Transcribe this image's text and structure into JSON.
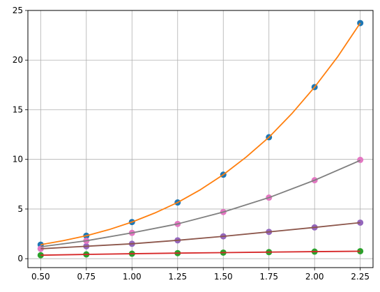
{
  "chart_data": {
    "type": "line",
    "title": "",
    "xlabel": "",
    "ylabel": "",
    "xlim": [
      0.43,
      2.32
    ],
    "ylim": [
      -0.9,
      25
    ],
    "grid": true,
    "x_ticks": [
      0.5,
      0.75,
      1.0,
      1.25,
      1.5,
      1.75,
      2.0,
      2.25
    ],
    "x_tick_labels": [
      "0.50",
      "0.75",
      "1.00",
      "1.25",
      "1.50",
      "1.75",
      "2.00",
      "2.25"
    ],
    "y_ticks": [
      0,
      5,
      10,
      15,
      20,
      25
    ],
    "y_tick_labels": [
      "0",
      "5",
      "10",
      "15",
      "20",
      "25"
    ],
    "series": [
      {
        "kind": "scatter",
        "color": "#1f77b4",
        "x": [
          0.5,
          0.75,
          1.0,
          1.25,
          1.5,
          1.75,
          2.0,
          2.25
        ],
        "y": [
          1.41,
          2.31,
          3.69,
          5.66,
          8.46,
          12.23,
          17.28,
          23.73
        ]
      },
      {
        "kind": "line",
        "color": "#ff7f0e",
        "x": [
          0.5,
          0.625,
          0.75,
          0.875,
          1.0,
          1.125,
          1.25,
          1.375,
          1.5,
          1.625,
          1.75,
          1.875,
          2.0,
          2.125,
          2.25
        ],
        "y": [
          1.41,
          1.82,
          2.31,
          2.93,
          3.69,
          4.6,
          5.66,
          6.95,
          8.46,
          10.23,
          12.23,
          14.6,
          17.28,
          20.3,
          23.73
        ]
      },
      {
        "kind": "scatter",
        "color": "#2ca02c",
        "x": [
          0.5,
          0.75,
          1.0,
          1.25,
          1.5,
          1.75,
          2.0,
          2.25
        ],
        "y": [
          0.35,
          0.43,
          0.5,
          0.56,
          0.61,
          0.66,
          0.71,
          0.75
        ]
      },
      {
        "kind": "line",
        "color": "#d62728",
        "x": [
          0.5,
          0.75,
          1.0,
          1.25,
          1.5,
          1.75,
          2.0,
          2.25
        ],
        "y": [
          0.35,
          0.43,
          0.5,
          0.56,
          0.61,
          0.66,
          0.71,
          0.75
        ]
      },
      {
        "kind": "scatter",
        "color": "#9467bd",
        "x": [
          0.5,
          0.75,
          1.0,
          1.25,
          1.5,
          1.75,
          2.0,
          2.25
        ],
        "y": [
          1.0,
          1.25,
          1.5,
          1.85,
          2.25,
          2.7,
          3.15,
          3.63
        ]
      },
      {
        "kind": "line",
        "color": "#8c564b",
        "x": [
          0.5,
          0.75,
          1.0,
          1.25,
          1.5,
          1.75,
          2.0,
          2.25
        ],
        "y": [
          1.0,
          1.25,
          1.5,
          1.85,
          2.25,
          2.7,
          3.15,
          3.63
        ]
      },
      {
        "kind": "scatter",
        "color": "#e377c2",
        "x": [
          0.5,
          0.75,
          1.0,
          1.25,
          1.5,
          1.75,
          2.0,
          2.25
        ],
        "y": [
          1.0,
          1.8,
          2.6,
          3.5,
          4.7,
          6.15,
          7.9,
          9.95
        ]
      },
      {
        "kind": "line",
        "color": "#7f7f7f",
        "x": [
          0.5,
          0.75,
          1.0,
          1.25,
          1.5,
          1.75,
          2.0,
          2.25
        ],
        "y": [
          1.2,
          1.8,
          2.6,
          3.5,
          4.7,
          6.15,
          7.9,
          9.9
        ]
      }
    ]
  }
}
